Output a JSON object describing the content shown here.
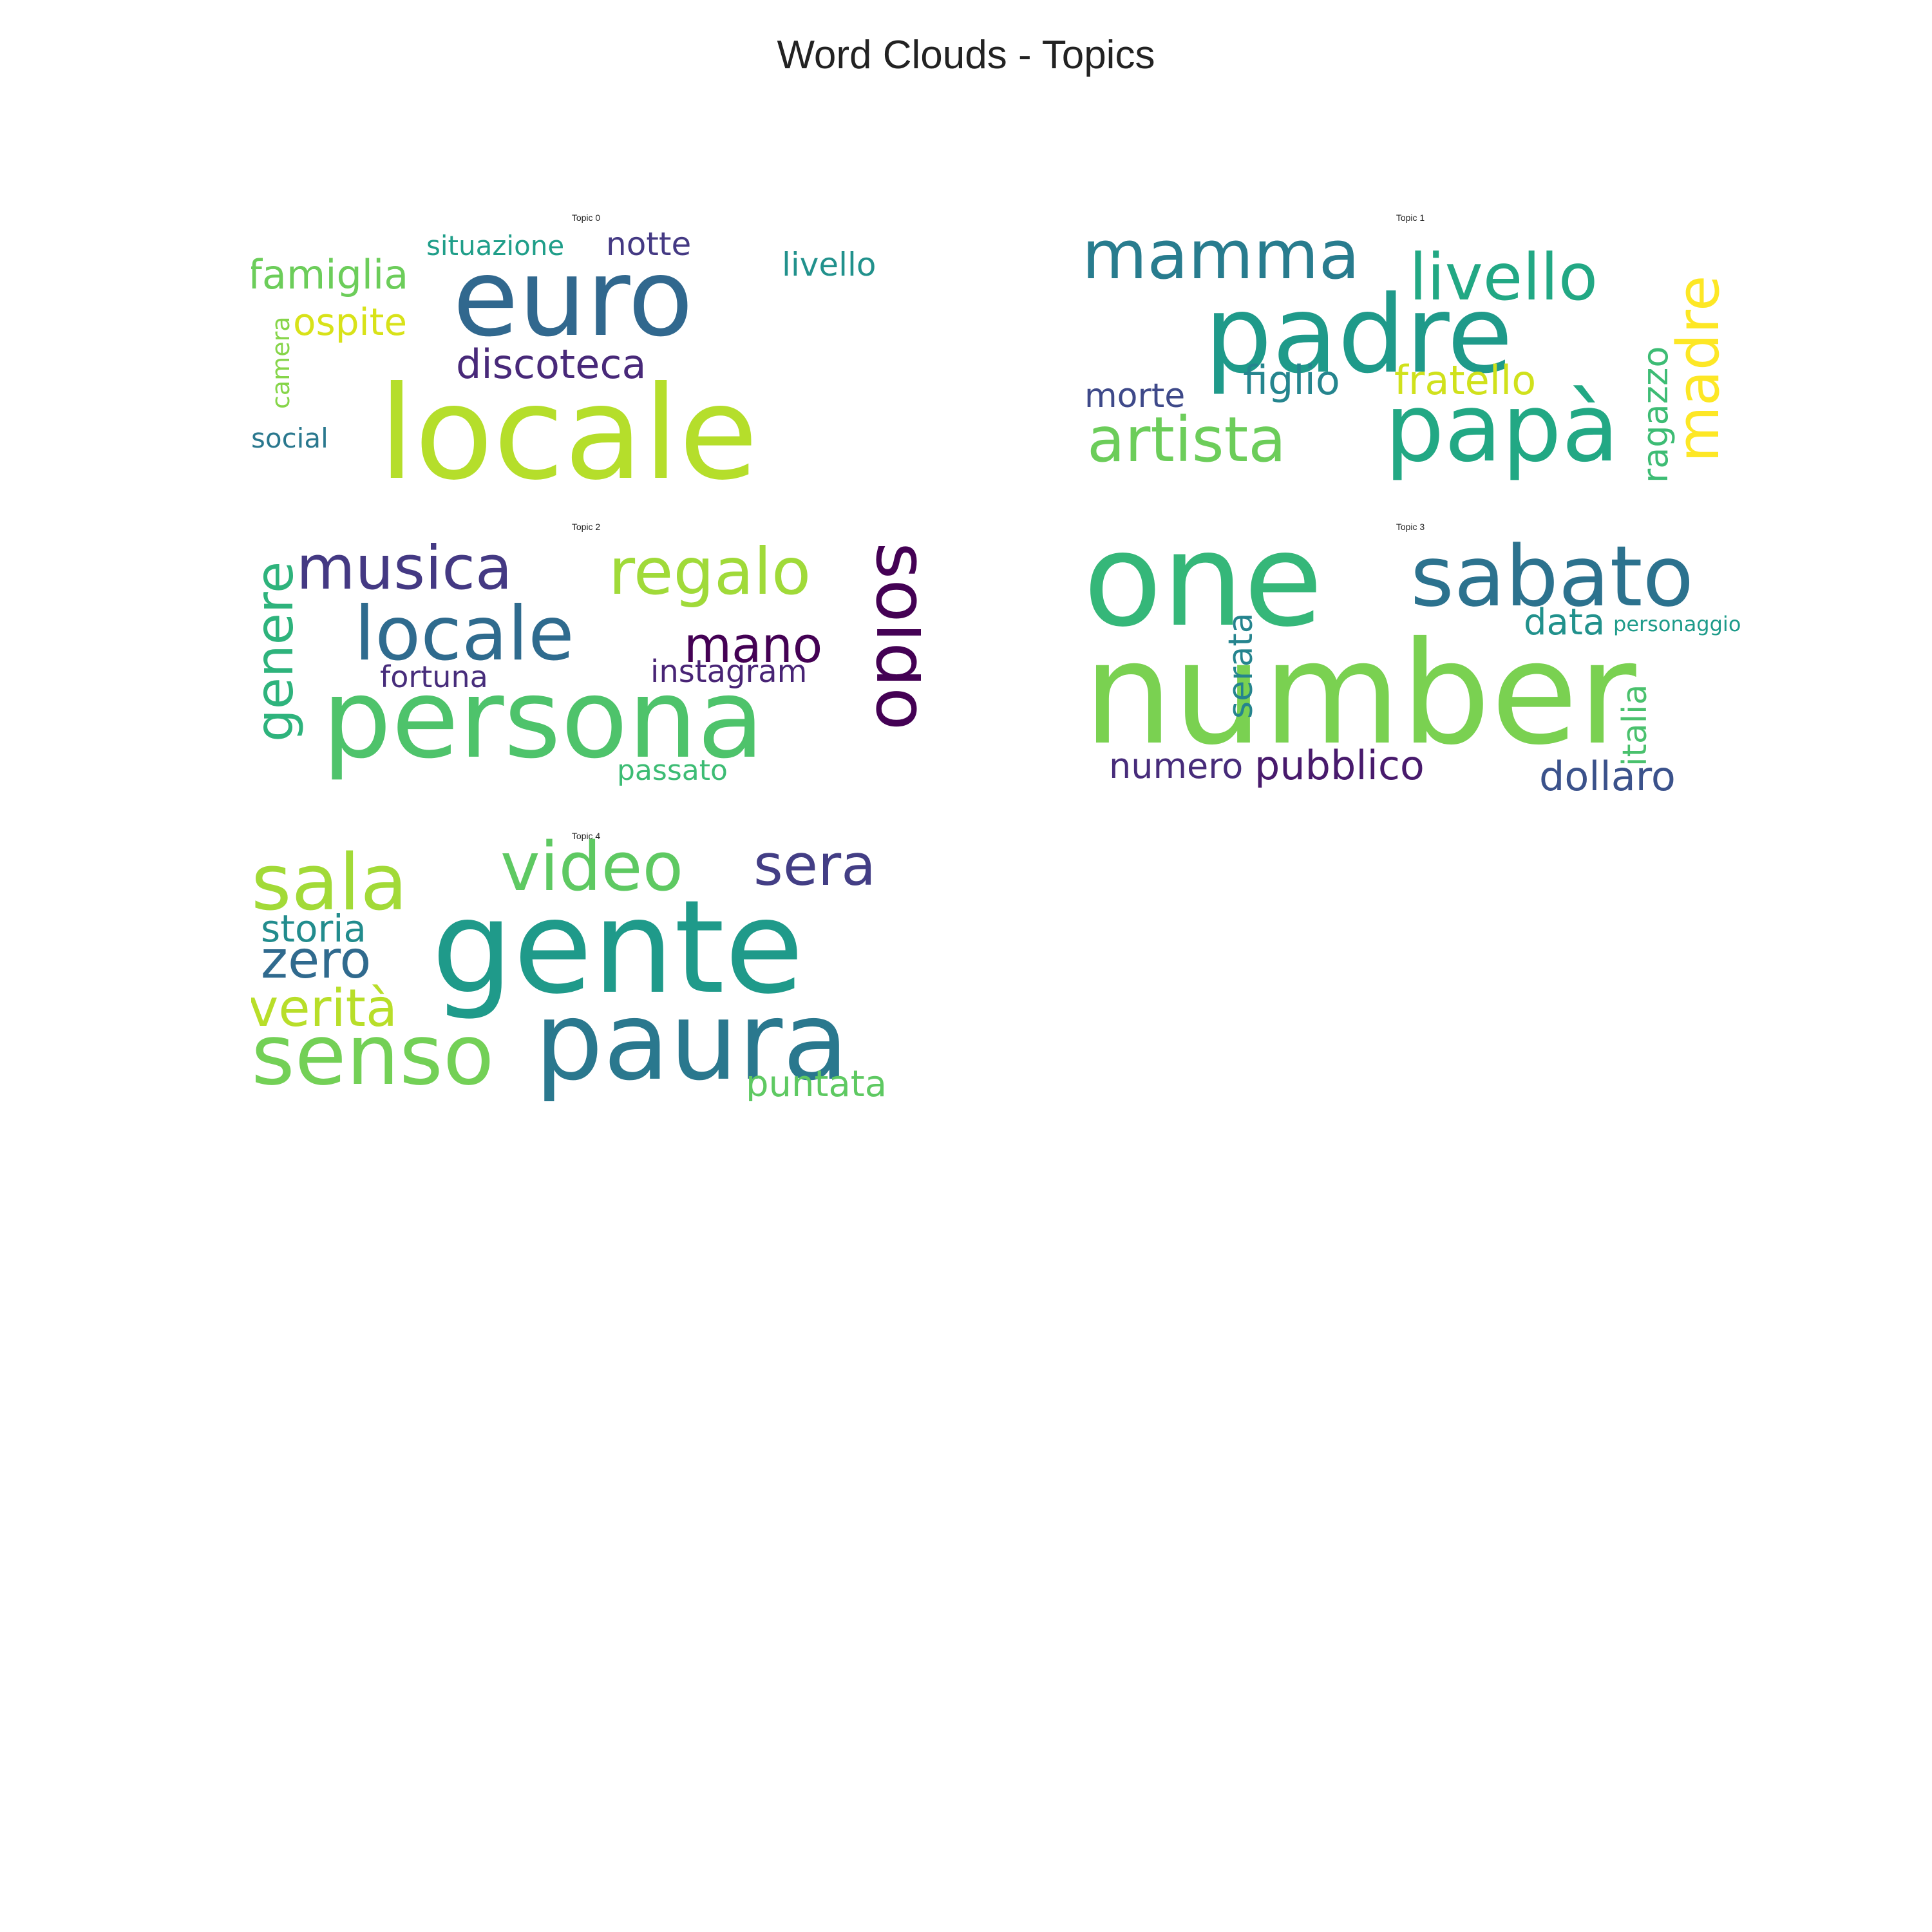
{
  "title": "Word Clouds - Topics",
  "panels": [
    {
      "title": "Topic 0",
      "words": [
        {
          "text": "locale",
          "color": "#b5de2b"
        },
        {
          "text": "euro",
          "color": "#31688e"
        },
        {
          "text": "famiglia",
          "color": "#6ccd5a"
        },
        {
          "text": "situazione",
          "color": "#1f9e89"
        },
        {
          "text": "notte",
          "color": "#443983"
        },
        {
          "text": "livello",
          "color": "#21918c"
        },
        {
          "text": "ospite",
          "color": "#d8e219"
        },
        {
          "text": "discoteca",
          "color": "#482979"
        },
        {
          "text": "camera",
          "color": "#86d549"
        },
        {
          "text": "social",
          "color": "#2a788e"
        }
      ]
    },
    {
      "title": "Topic 1",
      "words": [
        {
          "text": "mamma",
          "color": "#287c8e"
        },
        {
          "text": "padre",
          "color": "#1f9a8a"
        },
        {
          "text": "livello",
          "color": "#22a884"
        },
        {
          "text": "madre",
          "color": "#fde725"
        },
        {
          "text": "morte",
          "color": "#3e4989"
        },
        {
          "text": "figlio",
          "color": "#25858e"
        },
        {
          "text": "fratello",
          "color": "#d0e11c"
        },
        {
          "text": "artista",
          "color": "#6ccd5a"
        },
        {
          "text": "papà",
          "color": "#22a884"
        },
        {
          "text": "ragazzo",
          "color": "#3dbc74"
        }
      ]
    },
    {
      "title": "Topic 2",
      "words": [
        {
          "text": "musica",
          "color": "#443983"
        },
        {
          "text": "regalo",
          "color": "#a0da39"
        },
        {
          "text": "genere",
          "color": "#2eb37c"
        },
        {
          "text": "locale",
          "color": "#2f6b8e"
        },
        {
          "text": "mano",
          "color": "#440154"
        },
        {
          "text": "soldo",
          "color": "#440154"
        },
        {
          "text": "fortuna",
          "color": "#472d7b"
        },
        {
          "text": "instagram",
          "color": "#482475"
        },
        {
          "text": "persona",
          "color": "#4ec36b"
        },
        {
          "text": "passato",
          "color": "#3dbc74"
        }
      ]
    },
    {
      "title": "Topic 3",
      "words": [
        {
          "text": "one",
          "color": "#35b779"
        },
        {
          "text": "sabato",
          "color": "#2c728e"
        },
        {
          "text": "data",
          "color": "#21918c"
        },
        {
          "text": "personaggio",
          "color": "#1e9b8a"
        },
        {
          "text": "number",
          "color": "#7ad151"
        },
        {
          "text": "serata",
          "color": "#25848e"
        },
        {
          "text": "italia",
          "color": "#4ac16d"
        },
        {
          "text": "numero",
          "color": "#472c7a"
        },
        {
          "text": "pubblico",
          "color": "#481a6c"
        },
        {
          "text": "dollaro",
          "color": "#3b528b"
        }
      ]
    },
    {
      "title": "Topic 4",
      "words": [
        {
          "text": "sala",
          "color": "#a2da37"
        },
        {
          "text": "video",
          "color": "#5ec962"
        },
        {
          "text": "sera",
          "color": "#433e85"
        },
        {
          "text": "storia",
          "color": "#228c8d"
        },
        {
          "text": "zero",
          "color": "#306a8e"
        },
        {
          "text": "gente",
          "color": "#1f9a8a"
        },
        {
          "text": "verità",
          "color": "#b8de29"
        },
        {
          "text": "senso",
          "color": "#73d056"
        },
        {
          "text": "paura",
          "color": "#2a788e"
        },
        {
          "text": "puntata",
          "color": "#5ec962"
        }
      ]
    }
  ]
}
